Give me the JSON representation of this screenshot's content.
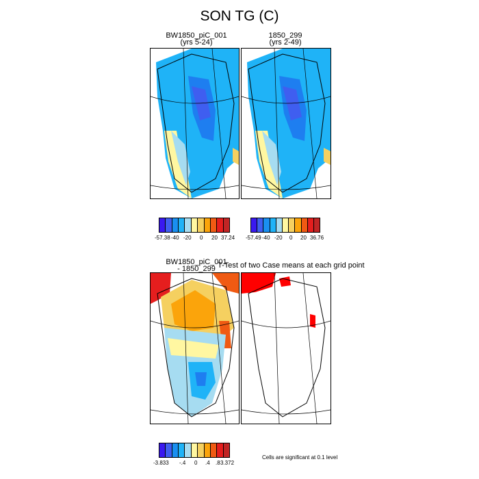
{
  "figure": {
    "title": "SON TG (C)"
  },
  "panels": [
    {
      "title": "BW1850_piC_001",
      "subtitle": "(yrs 5-24)"
    },
    {
      "title": "1850_299",
      "subtitle": "(yrs 2-49)"
    },
    {
      "title": "BW1850_piC_001",
      "subtitle": "- 1850_299"
    },
    {
      "title": "T-Test of two Case means at each grid point",
      "subtitle": ""
    }
  ],
  "colorbars": [
    {
      "labels": [
        "-57.38",
        "-40",
        "-20",
        "0",
        "20",
        "37.24"
      ],
      "colors": [
        "#3a19f0",
        "#3f5ef0",
        "#1a8ff0",
        "#1fb3f7",
        "#a6dcf1",
        "#fff7a1",
        "#f5d060",
        "#fba40b",
        "#f05a13",
        "#e51e1e",
        "#c02525"
      ]
    },
    {
      "labels": [
        "-57.49",
        "-40",
        "-20",
        "0",
        "20",
        "36.76"
      ],
      "colors": [
        "#3a19f0",
        "#3f5ef0",
        "#1a8ff0",
        "#1fb3f7",
        "#a6dcf1",
        "#fff7a1",
        "#f5d060",
        "#fba40b",
        "#f05a13",
        "#e51e1e",
        "#c02525"
      ]
    },
    {
      "labels": [
        "-3.833",
        "-.4",
        "0",
        ".4",
        ".8",
        "3.372"
      ],
      "colors": [
        "#3a19f0",
        "#3f5ef0",
        "#1a8ff0",
        "#1fb3f7",
        "#a6dcf1",
        "#fff7a1",
        "#f5d060",
        "#fba40b",
        "#f05a13",
        "#e51e1e",
        "#c02525"
      ]
    }
  ],
  "significance_note": "Cells are significant at 0.1 level",
  "colors": {
    "land_outline": "#000000",
    "deep_blue": "#1e7ef0",
    "mid_blue": "#1fb3f7",
    "light_blue": "#a6dcf1",
    "pale_yellow": "#fff7a1",
    "orange": "#fba40b",
    "red": "#e51e1e"
  }
}
